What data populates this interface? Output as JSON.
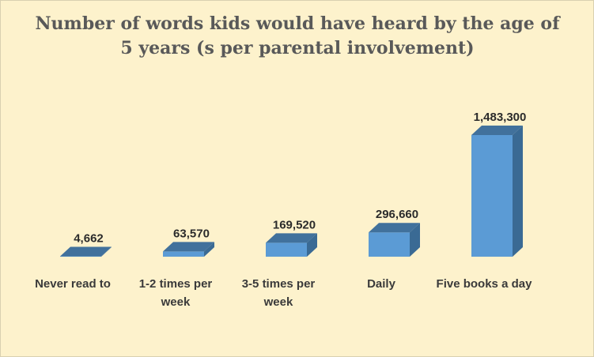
{
  "chart_data": {
    "type": "bar",
    "title": "Number of words kids would have heard by the age of 5 years (s per parental involvement)",
    "categories": [
      "Never read to",
      "1-2 times per week",
      "3-5 times per week",
      "Daily",
      "Five books a day"
    ],
    "values": [
      4662,
      63570,
      169520,
      296660,
      1483300
    ],
    "data_labels": [
      "4,662",
      "63,570",
      "169,520",
      "296,660",
      "1,483,300"
    ],
    "ylim": [
      0,
      1483300
    ],
    "grid": false,
    "legend": "none",
    "three_d": true
  },
  "colors": {
    "background": "#fdf2cc",
    "bar_front": "#5b9bd5",
    "bar_top": "#41719c",
    "bar_side": "#3a6a94"
  }
}
